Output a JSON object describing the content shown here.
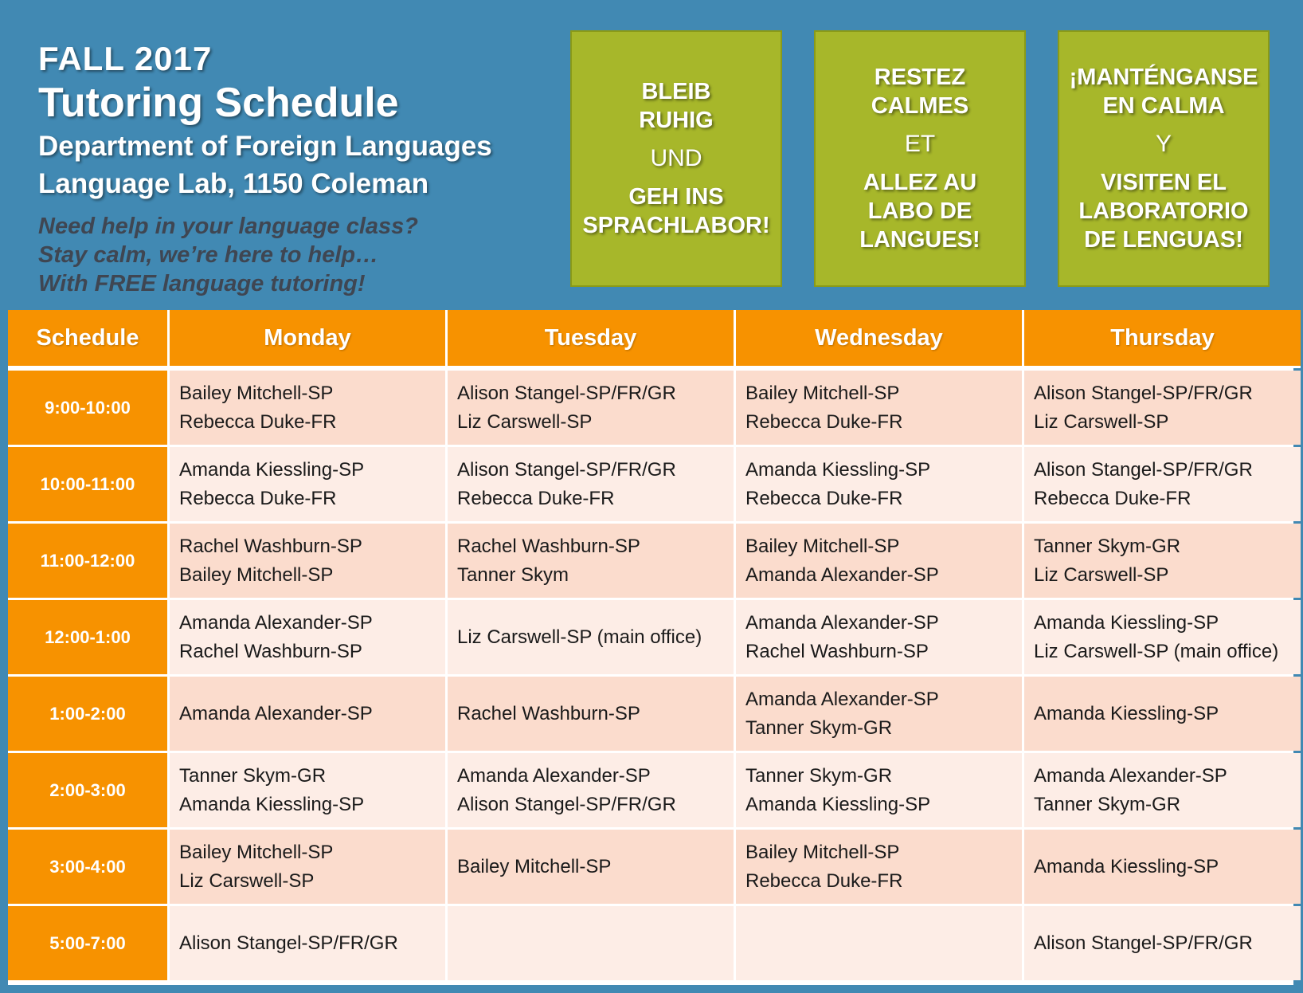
{
  "header": {
    "season": "FALL 2017",
    "title": "Tutoring Schedule",
    "department": "Department of Foreign Languages",
    "location": "Language Lab, 1150 Coleman",
    "tagline": [
      "Need help in your language class?",
      "Stay calm, we’re here to help…",
      "With FREE language tutoring!"
    ]
  },
  "boxes": [
    {
      "top": "BLEIB\nRUHIG",
      "mid": "UND",
      "bottom": "GEH INS\nSPRACHLABOR!"
    },
    {
      "top": "RESTEZ\nCALMES",
      "mid": "ET",
      "bottom": "ALLEZ AU\nLABO DE\nLANGUES!"
    },
    {
      "top": "¡MANTÉNGANSE\nEN CALMA",
      "mid": "Y",
      "bottom": "VISITEN EL\nLABORATORIO\nDE LENGUAS!"
    }
  ],
  "colors": {
    "background": "#4189b3",
    "box": "#a7b72a",
    "header": "#f79200",
    "row_dark": "#fbdccd",
    "row_light": "#fdede6"
  },
  "table": {
    "headers": [
      "Schedule",
      "Monday",
      "Tuesday",
      "Wednesday",
      "Thursday"
    ],
    "rows": [
      {
        "time": "9:00-10:00",
        "cells": [
          [
            "Bailey Mitchell-SP",
            "Rebecca Duke-FR"
          ],
          [
            "Alison Stangel-SP/FR/GR",
            "Liz Carswell-SP"
          ],
          [
            "Bailey Mitchell-SP",
            "Rebecca Duke-FR"
          ],
          [
            "Alison Stangel-SP/FR/GR",
            "Liz Carswell-SP"
          ]
        ]
      },
      {
        "time": "10:00-11:00",
        "cells": [
          [
            "Amanda Kiessling-SP",
            "Rebecca Duke-FR"
          ],
          [
            "Alison Stangel-SP/FR/GR",
            "Rebecca Duke-FR"
          ],
          [
            "Amanda Kiessling-SP",
            "Rebecca Duke-FR"
          ],
          [
            "Alison Stangel-SP/FR/GR",
            "Rebecca Duke-FR"
          ]
        ]
      },
      {
        "time": "11:00-12:00",
        "cells": [
          [
            "Rachel Washburn-SP",
            "Bailey Mitchell-SP"
          ],
          [
            "Rachel Washburn-SP",
            "Tanner Skym"
          ],
          [
            "Bailey Mitchell-SP",
            "Amanda Alexander-SP"
          ],
          [
            "Tanner Skym-GR",
            "Liz Carswell-SP"
          ]
        ]
      },
      {
        "time": "12:00-1:00",
        "cells": [
          [
            "Amanda Alexander-SP",
            "Rachel Washburn-SP"
          ],
          [
            "Liz Carswell-SP (main office)"
          ],
          [
            "Amanda Alexander-SP",
            "Rachel Washburn-SP"
          ],
          [
            "Amanda Kiessling-SP",
            "Liz Carswell-SP (main office)"
          ]
        ]
      },
      {
        "time": "1:00-2:00",
        "cells": [
          [
            "Amanda Alexander-SP"
          ],
          [
            "Rachel Washburn-SP"
          ],
          [
            "Amanda Alexander-SP",
            "Tanner Skym-GR"
          ],
          [
            "Amanda Kiessling-SP"
          ]
        ]
      },
      {
        "time": "2:00-3:00",
        "cells": [
          [
            "Tanner Skym-GR",
            "Amanda Kiessling-SP"
          ],
          [
            "Amanda Alexander-SP",
            "Alison Stangel-SP/FR/GR"
          ],
          [
            "Tanner Skym-GR",
            "Amanda Kiessling-SP"
          ],
          [
            "Amanda Alexander-SP",
            "Tanner Skym-GR"
          ]
        ]
      },
      {
        "time": "3:00-4:00",
        "cells": [
          [
            "Bailey Mitchell-SP",
            "Liz Carswell-SP"
          ],
          [
            "Bailey Mitchell-SP"
          ],
          [
            "Bailey Mitchell-SP",
            "Rebecca Duke-FR"
          ],
          [
            "Amanda Kiessling-SP"
          ]
        ]
      },
      {
        "time": "5:00-7:00",
        "cells": [
          [
            "Alison Stangel-SP/FR/GR"
          ],
          [],
          [],
          [
            "Alison Stangel-SP/FR/GR"
          ]
        ]
      }
    ]
  }
}
